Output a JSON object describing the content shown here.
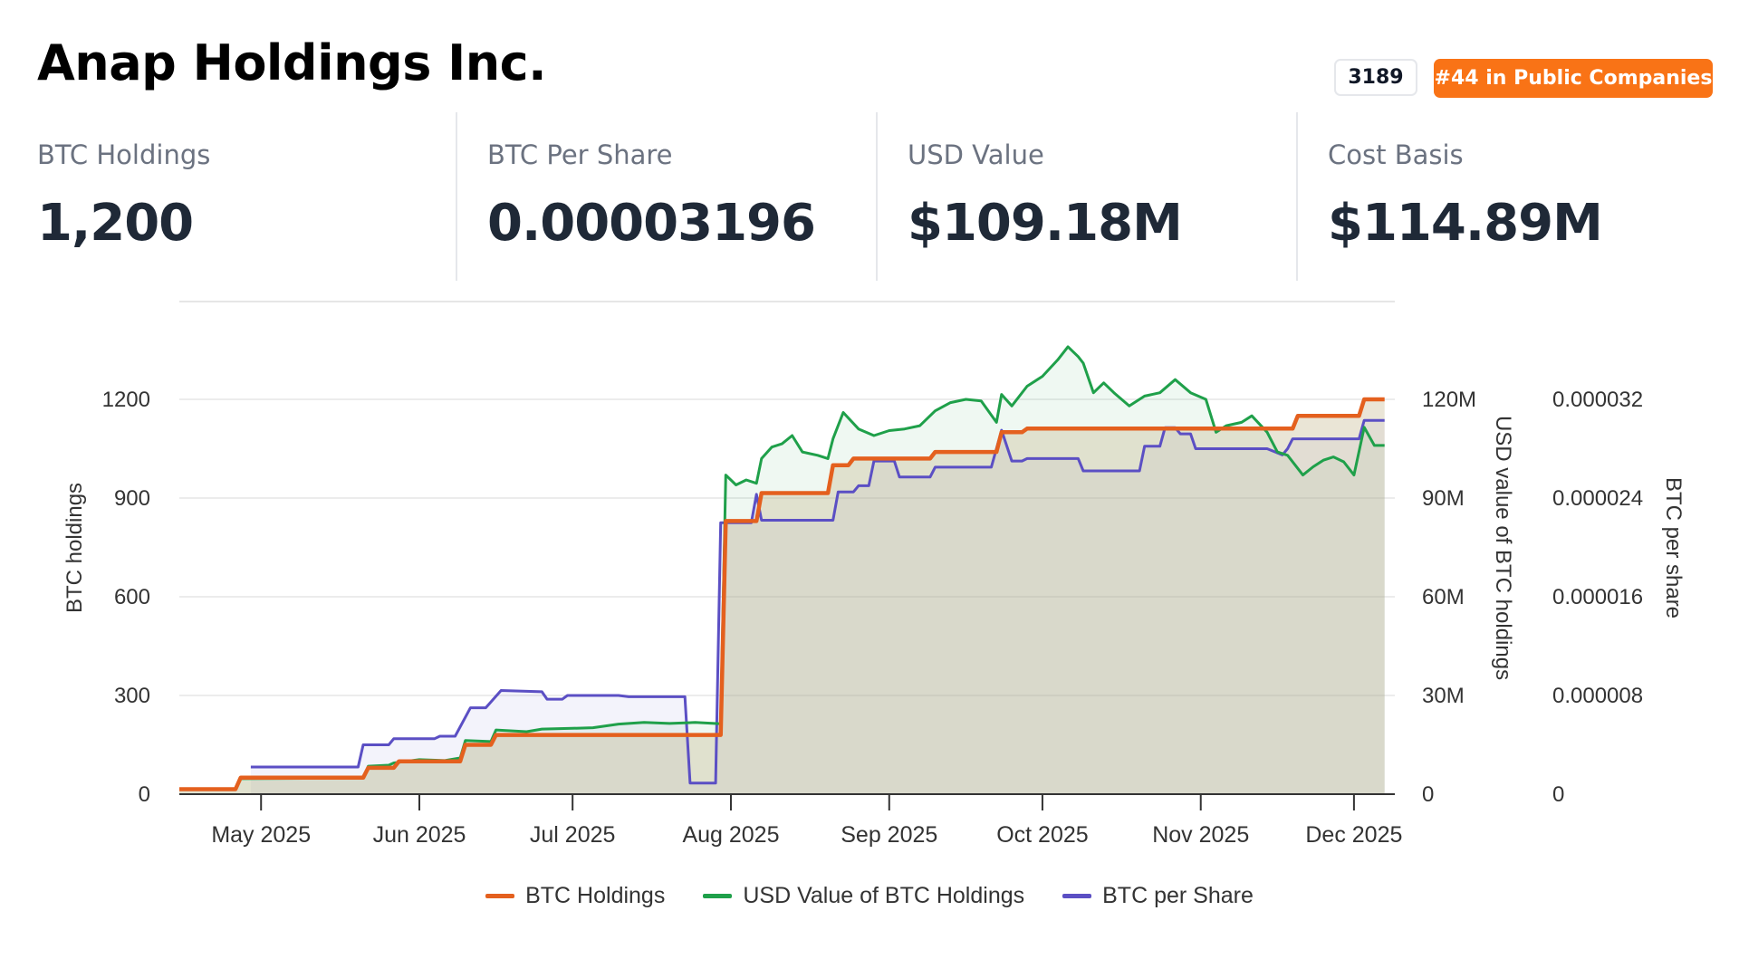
{
  "header": {
    "company_name": "Anap Holdings Inc.",
    "ticker": "3189",
    "rank_badge": "#44 in Public Companies"
  },
  "stats": [
    {
      "label": "BTC Holdings",
      "value": "1,200"
    },
    {
      "label": "BTC Per Share",
      "value": "0.00003196"
    },
    {
      "label": "USD Value",
      "value": "$109.18M"
    },
    {
      "label": "Cost Basis",
      "value": "$114.89M"
    }
  ],
  "colors": {
    "btc_holdings": "#e4601e",
    "usd_value": "#1fa04a",
    "btc_per_share": "#5b4fc4",
    "badge_bg": "#f97316"
  },
  "chart_data": {
    "type": "line",
    "y_axes": {
      "left": {
        "label": "BTC holdings",
        "min": 0,
        "max": 1200,
        "ticks": [
          "0",
          "300",
          "600",
          "900",
          "1200"
        ]
      },
      "right1": {
        "label": "USD value of BTC holdings",
        "min": 0,
        "max": 120000000,
        "ticks": [
          "0",
          "30M",
          "60M",
          "90M",
          "120M"
        ]
      },
      "right2": {
        "label": "BTC per share",
        "min": 0,
        "max": 3.2e-05,
        "ticks": [
          "0",
          "0.000008",
          "0.000016",
          "0.000024",
          "0.000032"
        ]
      }
    },
    "x_axis": {
      "start": "2025-04-15",
      "end": "2025-12-09",
      "ticks": [
        {
          "date": "2025-05-01",
          "label": "May 2025"
        },
        {
          "date": "2025-06-01",
          "label": "Jun 2025"
        },
        {
          "date": "2025-07-01",
          "label": "Jul 2025"
        },
        {
          "date": "2025-08-01",
          "label": "Aug 2025"
        },
        {
          "date": "2025-09-01",
          "label": "Sep 2025"
        },
        {
          "date": "2025-10-01",
          "label": "Oct 2025"
        },
        {
          "date": "2025-11-01",
          "label": "Nov 2025"
        },
        {
          "date": "2025-12-01",
          "label": "Dec 2025"
        }
      ]
    },
    "grid": true,
    "legend_position": "bottom-center",
    "series": [
      {
        "name": "BTC Holdings",
        "axis": "left",
        "color_key": "btc_holdings",
        "points": [
          [
            "2025-04-15",
            15
          ],
          [
            "2025-04-26",
            15
          ],
          [
            "2025-04-27",
            50
          ],
          [
            "2025-05-21",
            50
          ],
          [
            "2025-05-22",
            80
          ],
          [
            "2025-05-27",
            80
          ],
          [
            "2025-05-28",
            100
          ],
          [
            "2025-06-09",
            100
          ],
          [
            "2025-06-10",
            150
          ],
          [
            "2025-06-15",
            150
          ],
          [
            "2025-06-16",
            180
          ],
          [
            "2025-07-30",
            180
          ],
          [
            "2025-07-31",
            830
          ],
          [
            "2025-08-06",
            830
          ],
          [
            "2025-08-07",
            915
          ],
          [
            "2025-08-20",
            915
          ],
          [
            "2025-08-21",
            1000
          ],
          [
            "2025-08-24",
            1000
          ],
          [
            "2025-08-25",
            1020
          ],
          [
            "2025-09-09",
            1020
          ],
          [
            "2025-09-10",
            1040
          ],
          [
            "2025-09-22",
            1040
          ],
          [
            "2025-09-23",
            1100
          ],
          [
            "2025-09-27",
            1100
          ],
          [
            "2025-09-28",
            1111
          ],
          [
            "2025-11-19",
            1111
          ],
          [
            "2025-11-20",
            1150
          ],
          [
            "2025-12-02",
            1150
          ],
          [
            "2025-12-03",
            1200
          ],
          [
            "2025-12-07",
            1200
          ]
        ]
      },
      {
        "name": "USD Value of BTC Holdings",
        "axis": "right1",
        "color_key": "usd_value",
        "points": [
          [
            "2025-04-15",
            1400000
          ],
          [
            "2025-04-26",
            1400000
          ],
          [
            "2025-04-27",
            4700000
          ],
          [
            "2025-05-21",
            4900000
          ],
          [
            "2025-05-22",
            8500000
          ],
          [
            "2025-05-26",
            8800000
          ],
          [
            "2025-05-27",
            9500000
          ],
          [
            "2025-06-01",
            10500000
          ],
          [
            "2025-06-06",
            10200000
          ],
          [
            "2025-06-09",
            11000000
          ],
          [
            "2025-06-10",
            16300000
          ],
          [
            "2025-06-15",
            16000000
          ],
          [
            "2025-06-16",
            19500000
          ],
          [
            "2025-06-22",
            19000000
          ],
          [
            "2025-06-25",
            19800000
          ],
          [
            "2025-07-01",
            20000000
          ],
          [
            "2025-07-05",
            20200000
          ],
          [
            "2025-07-10",
            21300000
          ],
          [
            "2025-07-15",
            21800000
          ],
          [
            "2025-07-20",
            21500000
          ],
          [
            "2025-07-25",
            21800000
          ],
          [
            "2025-07-30",
            21400000
          ],
          [
            "2025-07-31",
            97000000
          ],
          [
            "2025-08-02",
            94000000
          ],
          [
            "2025-08-04",
            95500000
          ],
          [
            "2025-08-06",
            94500000
          ],
          [
            "2025-08-07",
            102000000
          ],
          [
            "2025-08-09",
            105500000
          ],
          [
            "2025-08-11",
            106500000
          ],
          [
            "2025-08-13",
            109000000
          ],
          [
            "2025-08-15",
            104000000
          ],
          [
            "2025-08-18",
            103000000
          ],
          [
            "2025-08-20",
            102000000
          ],
          [
            "2025-08-21",
            108000000
          ],
          [
            "2025-08-23",
            116000000
          ],
          [
            "2025-08-26",
            111000000
          ],
          [
            "2025-08-29",
            109000000
          ],
          [
            "2025-09-01",
            110500000
          ],
          [
            "2025-09-04",
            111000000
          ],
          [
            "2025-09-07",
            112000000
          ],
          [
            "2025-09-10",
            116500000
          ],
          [
            "2025-09-13",
            119000000
          ],
          [
            "2025-09-16",
            120000000
          ],
          [
            "2025-09-19",
            119500000
          ],
          [
            "2025-09-22",
            113000000
          ],
          [
            "2025-09-23",
            121500000
          ],
          [
            "2025-09-25",
            118000000
          ],
          [
            "2025-09-28",
            124000000
          ],
          [
            "2025-10-01",
            127000000
          ],
          [
            "2025-10-04",
            132000000
          ],
          [
            "2025-10-06",
            136000000
          ],
          [
            "2025-10-08",
            133000000
          ],
          [
            "2025-10-09",
            131000000
          ],
          [
            "2025-10-11",
            122000000
          ],
          [
            "2025-10-13",
            125000000
          ],
          [
            "2025-10-15",
            122000000
          ],
          [
            "2025-10-18",
            118000000
          ],
          [
            "2025-10-21",
            121000000
          ],
          [
            "2025-10-24",
            122000000
          ],
          [
            "2025-10-27",
            126000000
          ],
          [
            "2025-10-30",
            122000000
          ],
          [
            "2025-11-02",
            120000000
          ],
          [
            "2025-11-04",
            110000000
          ],
          [
            "2025-11-06",
            112000000
          ],
          [
            "2025-11-09",
            113000000
          ],
          [
            "2025-11-11",
            115000000
          ],
          [
            "2025-11-14",
            110000000
          ],
          [
            "2025-11-16",
            104000000
          ],
          [
            "2025-11-18",
            103000000
          ],
          [
            "2025-11-21",
            97000000
          ],
          [
            "2025-11-23",
            99500000
          ],
          [
            "2025-11-25",
            101500000
          ],
          [
            "2025-11-27",
            102500000
          ],
          [
            "2025-11-29",
            101000000
          ],
          [
            "2025-12-01",
            97000000
          ],
          [
            "2025-12-03",
            111500000
          ],
          [
            "2025-12-05",
            106000000
          ],
          [
            "2025-12-07",
            106000000
          ]
        ]
      },
      {
        "name": "BTC per Share",
        "axis": "right2",
        "color_key": "btc_per_share",
        "points": [
          [
            "2025-04-29",
            2.2e-06
          ],
          [
            "2025-05-20",
            2.2e-06
          ],
          [
            "2025-05-21",
            4e-06
          ],
          [
            "2025-05-26",
            4e-06
          ],
          [
            "2025-05-27",
            4.5e-06
          ],
          [
            "2025-06-04",
            4.5e-06
          ],
          [
            "2025-06-05",
            4.7e-06
          ],
          [
            "2025-06-08",
            4.7e-06
          ],
          [
            "2025-06-11",
            7e-06
          ],
          [
            "2025-06-14",
            7e-06
          ],
          [
            "2025-06-17",
            8.4e-06
          ],
          [
            "2025-06-25",
            8.3e-06
          ],
          [
            "2025-06-26",
            7.7e-06
          ],
          [
            "2025-06-29",
            7.7e-06
          ],
          [
            "2025-06-30",
            8e-06
          ],
          [
            "2025-07-10",
            8e-06
          ],
          [
            "2025-07-12",
            7.9e-06
          ],
          [
            "2025-07-23",
            7.9e-06
          ],
          [
            "2025-07-24",
            9e-07
          ],
          [
            "2025-07-29",
            9e-07
          ],
          [
            "2025-07-30",
            2.2e-05
          ],
          [
            "2025-08-05",
            2.2e-05
          ],
          [
            "2025-08-06",
            2.43e-05
          ],
          [
            "2025-08-07",
            2.22e-05
          ],
          [
            "2025-08-21",
            2.22e-05
          ],
          [
            "2025-08-22",
            2.45e-05
          ],
          [
            "2025-08-25",
            2.45e-05
          ],
          [
            "2025-08-26",
            2.5e-05
          ],
          [
            "2025-08-28",
            2.5e-05
          ],
          [
            "2025-08-29",
            2.7e-05
          ],
          [
            "2025-09-02",
            2.7e-05
          ],
          [
            "2025-09-03",
            2.57e-05
          ],
          [
            "2025-09-09",
            2.57e-05
          ],
          [
            "2025-09-10",
            2.65e-05
          ],
          [
            "2025-09-21",
            2.65e-05
          ],
          [
            "2025-09-23",
            2.95e-05
          ],
          [
            "2025-09-25",
            2.7e-05
          ],
          [
            "2025-09-27",
            2.7e-05
          ],
          [
            "2025-09-28",
            2.72e-05
          ],
          [
            "2025-10-08",
            2.72e-05
          ],
          [
            "2025-10-09",
            2.62e-05
          ],
          [
            "2025-10-20",
            2.62e-05
          ],
          [
            "2025-10-21",
            2.82e-05
          ],
          [
            "2025-10-24",
            2.82e-05
          ],
          [
            "2025-10-25",
            2.97e-05
          ],
          [
            "2025-10-27",
            2.97e-05
          ],
          [
            "2025-10-28",
            2.92e-05
          ],
          [
            "2025-10-30",
            2.92e-05
          ],
          [
            "2025-10-31",
            2.8e-05
          ],
          [
            "2025-11-14",
            2.8e-05
          ],
          [
            "2025-11-17",
            2.75e-05
          ],
          [
            "2025-11-18",
            2.8e-05
          ],
          [
            "2025-11-19",
            2.88e-05
          ],
          [
            "2025-12-02",
            2.88e-05
          ],
          [
            "2025-12-03",
            3.03e-05
          ],
          [
            "2025-12-07",
            3.03e-05
          ]
        ]
      }
    ]
  }
}
